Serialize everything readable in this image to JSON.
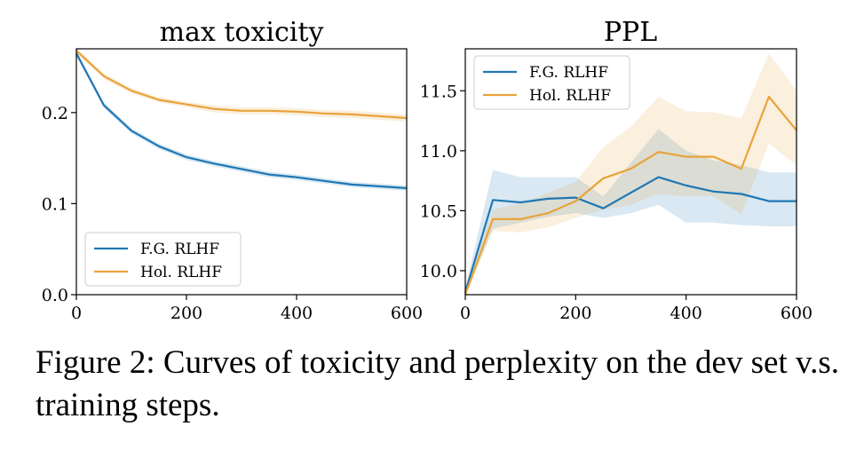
{
  "caption": {
    "label": "Figure 2:",
    "text": "Curves of toxicity and perplexity on the dev set v.s. training steps."
  },
  "colors": {
    "fg": "#1f77b4",
    "hol": "#e8a33a"
  },
  "chart_data": [
    {
      "type": "line",
      "title": "max toxicity",
      "xlabel": "",
      "ylabel": "",
      "xlim": [
        0,
        600
      ],
      "ylim": [
        0.0,
        0.27
      ],
      "xticks": [
        0,
        200,
        400,
        600
      ],
      "yticks": [
        0.0,
        0.1,
        0.2
      ],
      "ytick_labels": [
        "0.0",
        "0.1",
        "0.2"
      ],
      "legend_position": "bottom-left",
      "x": [
        0,
        50,
        100,
        150,
        200,
        250,
        300,
        350,
        400,
        450,
        500,
        550,
        600
      ],
      "series": [
        {
          "name": "F.G. RLHF",
          "color": "#1f77b4",
          "values": [
            0.265,
            0.208,
            0.18,
            0.163,
            0.151,
            0.144,
            0.138,
            0.132,
            0.129,
            0.125,
            0.121,
            0.119,
            0.117
          ],
          "band": [
            0.003,
            0.003,
            0.003,
            0.003,
            0.003,
            0.003,
            0.003,
            0.003,
            0.003,
            0.003,
            0.003,
            0.003,
            0.003
          ]
        },
        {
          "name": "Hol. RLHF",
          "color": "#e8a33a",
          "values": [
            0.268,
            0.24,
            0.224,
            0.214,
            0.209,
            0.204,
            0.202,
            0.202,
            0.201,
            0.199,
            0.198,
            0.196,
            0.194
          ],
          "band": [
            0.003,
            0.003,
            0.003,
            0.003,
            0.003,
            0.004,
            0.004,
            0.004,
            0.004,
            0.004,
            0.004,
            0.004,
            0.004
          ]
        }
      ]
    },
    {
      "type": "line",
      "title": "PPL",
      "xlabel": "",
      "ylabel": "",
      "xlim": [
        0,
        600
      ],
      "ylim": [
        9.8,
        11.85
      ],
      "xticks": [
        0,
        200,
        400,
        600
      ],
      "yticks": [
        10.0,
        10.5,
        11.0,
        11.5
      ],
      "ytick_labels": [
        "10.0",
        "10.5",
        "11.0",
        "11.5"
      ],
      "legend_position": "top-left",
      "x": [
        0,
        50,
        100,
        150,
        200,
        250,
        300,
        350,
        400,
        450,
        500,
        550,
        600
      ],
      "series": [
        {
          "name": "F.G. RLHF",
          "color": "#1f77b4",
          "values": [
            9.82,
            10.59,
            10.57,
            10.6,
            10.61,
            10.52,
            10.65,
            10.78,
            10.71,
            10.66,
            10.64,
            10.58,
            10.58
          ],
          "lower": [
            9.8,
            10.35,
            10.4,
            10.45,
            10.48,
            10.44,
            10.48,
            10.55,
            10.4,
            10.4,
            10.38,
            10.37,
            10.37
          ],
          "upper": [
            9.86,
            10.84,
            10.78,
            10.78,
            10.78,
            10.62,
            10.9,
            11.18,
            11.0,
            10.92,
            10.88,
            10.82,
            10.82
          ]
        },
        {
          "name": "Hol. RLHF",
          "color": "#e8a33a",
          "values": [
            9.8,
            10.43,
            10.43,
            10.48,
            10.58,
            10.77,
            10.85,
            10.99,
            10.95,
            10.95,
            10.85,
            11.45,
            11.17
          ],
          "lower": [
            9.78,
            10.33,
            10.32,
            10.36,
            10.44,
            10.51,
            10.55,
            10.64,
            10.62,
            10.62,
            10.47,
            11.06,
            10.88
          ],
          "upper": [
            9.84,
            10.51,
            10.56,
            10.65,
            10.74,
            11.03,
            11.2,
            11.45,
            11.33,
            11.32,
            11.27,
            11.81,
            11.5
          ]
        }
      ]
    }
  ]
}
